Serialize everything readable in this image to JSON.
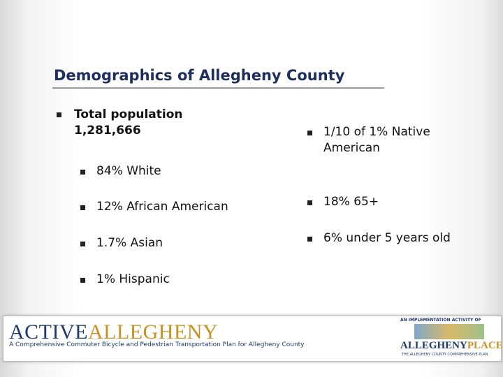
{
  "slide": {
    "title": "Demographics of Allegheny County",
    "left_item": {
      "lines": [
        "Total population",
        "1,281,666"
      ]
    },
    "sub_items": [
      "84% White",
      "12% African American",
      "1.7% Asian",
      "1% Hispanic"
    ],
    "right_items": [
      "1/10 of 1% Native American",
      "18% 65+",
      "6% under 5 years old"
    ]
  },
  "footer": {
    "brand_part1": "ACTIVE",
    "brand_part2": "ALLEGHENY",
    "tagline": "A Comprehensive Commuter Bicycle and Pedestrian Transportation Plan for Allegheny County",
    "partner_caption": "AN IMPLEMENTATION ACTIVITY OF",
    "partner_part1": "ALLEGHENY",
    "partner_part2": "PLACES",
    "partner_subtitle": "THE ALLEGHENY COUNTY COMPREHENSIVE PLAN"
  }
}
